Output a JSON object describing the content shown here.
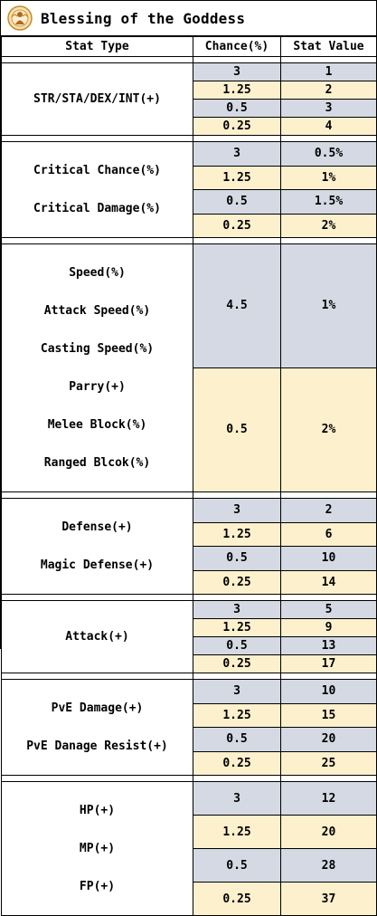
{
  "title": "Blessing of the Goddess",
  "icon": "goddess-emblem-icon",
  "colors": {
    "gray_row": "#d5d9e3",
    "yellow_row": "#fdf0cd"
  },
  "headers": {
    "stat_type": "Stat Type",
    "chance": "Chance(%)",
    "value": "Stat Value"
  },
  "groups": [
    {
      "labels": [
        "STR/STA/DEX/INT(+)"
      ],
      "rows": [
        {
          "chance": "3",
          "value": "1"
        },
        {
          "chance": "1.25",
          "value": "2"
        },
        {
          "chance": "0.5",
          "value": "3"
        },
        {
          "chance": "0.25",
          "value": "4"
        }
      ]
    },
    {
      "labels": [
        "Critical Chance(%)",
        "Critical Damage(%)"
      ],
      "rows": [
        {
          "chance": "3",
          "value": "0.5%"
        },
        {
          "chance": "1.25",
          "value": "1%"
        },
        {
          "chance": "0.5",
          "value": "1.5%"
        },
        {
          "chance": "0.25",
          "value": "2%"
        }
      ]
    },
    {
      "labels": [
        "Speed(%)",
        "Attack Speed(%)",
        "Casting Speed(%)",
        "Parry(+)",
        "Melee Block(%)",
        "Ranged Blcok(%)"
      ],
      "rows": [
        {
          "chance": "4.5",
          "value": "1%"
        },
        {
          "chance": "0.5",
          "value": "2%"
        }
      ]
    },
    {
      "labels": [
        "Defense(+)",
        "Magic Defense(+)"
      ],
      "rows": [
        {
          "chance": "3",
          "value": "2"
        },
        {
          "chance": "1.25",
          "value": "6"
        },
        {
          "chance": "0.5",
          "value": "10"
        },
        {
          "chance": "0.25",
          "value": "14"
        }
      ]
    },
    {
      "labels": [
        "Attack(+)"
      ],
      "rows": [
        {
          "chance": "3",
          "value": "5"
        },
        {
          "chance": "1.25",
          "value": "9"
        },
        {
          "chance": "0.5",
          "value": "13"
        },
        {
          "chance": "0.25",
          "value": "17"
        }
      ]
    },
    {
      "labels": [
        "PvE Damage(+)",
        "PvE Danage Resist(+)"
      ],
      "rows": [
        {
          "chance": "3",
          "value": "10"
        },
        {
          "chance": "1.25",
          "value": "15"
        },
        {
          "chance": "0.5",
          "value": "20"
        },
        {
          "chance": "0.25",
          "value": "25"
        }
      ]
    },
    {
      "labels": [
        "HP(+)",
        "MP(+)",
        "FP(+)"
      ],
      "rows": [
        {
          "chance": "3",
          "value": "12"
        },
        {
          "chance": "1.25",
          "value": "20"
        },
        {
          "chance": "0.5",
          "value": "28"
        },
        {
          "chance": "0.25",
          "value": "37"
        }
      ]
    }
  ]
}
